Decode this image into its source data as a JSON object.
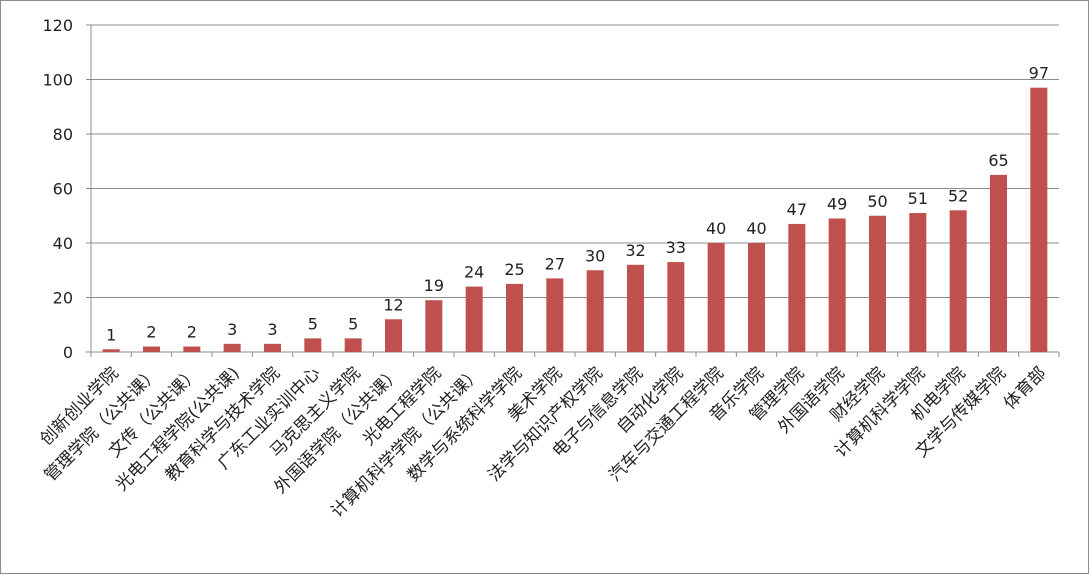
{
  "chart_data": {
    "type": "bar",
    "title": "",
    "xlabel": "",
    "ylabel": "",
    "ylim": [
      0,
      120
    ],
    "ytick_step": 20,
    "yticks": [
      "0",
      "20",
      "40",
      "60",
      "80",
      "100",
      "120"
    ],
    "grid": true,
    "legend": "none",
    "bar_color": "#C0504D",
    "categories": [
      "创新创业学院",
      "管理学院（公共课）",
      "文传（公共课）",
      "光电工程学院(公共课)",
      "教育科学与技术学院",
      "广东工业实训中心",
      "马克思主义学院",
      "外国语学院（公共课）",
      "光电工程学院",
      "计算机科学学院（公共课）",
      "数学与系统科学学院",
      "美术学院",
      "法学与知识产权学院",
      "电子与信息学院",
      "自动化学院",
      "汽车与交通工程学院",
      "音乐学院",
      "管理学院",
      "外国语学院",
      "财经学院",
      "计算机科学学院",
      "机电学院",
      "文学与传媒学院",
      "体育部"
    ],
    "values": [
      1,
      2,
      2,
      3,
      3,
      5,
      5,
      12,
      19,
      24,
      25,
      27,
      30,
      32,
      33,
      40,
      40,
      47,
      49,
      50,
      51,
      52,
      65,
      97
    ],
    "data_labels": [
      "1",
      "2",
      "2",
      "3",
      "3",
      "5",
      "5",
      "12",
      "19",
      "24",
      "25",
      "27",
      "30",
      "32",
      "33",
      "40",
      "40",
      "47",
      "49",
      "50",
      "51",
      "52",
      "65",
      "97"
    ]
  }
}
